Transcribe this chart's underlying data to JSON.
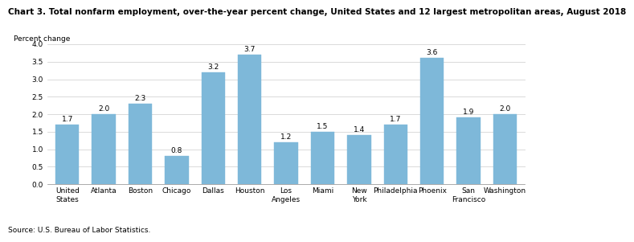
{
  "title": "Chart 3. Total nonfarm employment, over-the-year percent change, United States and 12 largest metropolitan areas, August 2018",
  "ylabel": "Percent change",
  "source": "Source: U.S. Bureau of Labor Statistics.",
  "categories": [
    "United\nStates",
    "Atlanta",
    "Boston",
    "Chicago",
    "Dallas",
    "Houston",
    "Los\nAngeles",
    "Miami",
    "New\nYork",
    "Philadelphia",
    "Phoenix",
    "San\nFrancisco",
    "Washington"
  ],
  "values": [
    1.7,
    2.0,
    2.3,
    0.8,
    3.2,
    3.7,
    1.2,
    1.5,
    1.4,
    1.7,
    3.6,
    1.9,
    2.0
  ],
  "bar_color": "#7eb8d9",
  "ylim": [
    0.0,
    4.0
  ],
  "yticks": [
    0.0,
    0.5,
    1.0,
    1.5,
    2.0,
    2.5,
    3.0,
    3.5,
    4.0
  ],
  "value_labels": [
    "1.7",
    "2.0",
    "2.3",
    "0.8",
    "3.2",
    "3.7",
    "1.2",
    "1.5",
    "1.4",
    "1.7",
    "3.6",
    "1.9",
    "2.0"
  ],
  "title_fontsize": 7.5,
  "ylabel_fontsize": 6.5,
  "tick_fontsize": 6.5,
  "source_fontsize": 6.5,
  "bar_label_fontsize": 6.5
}
